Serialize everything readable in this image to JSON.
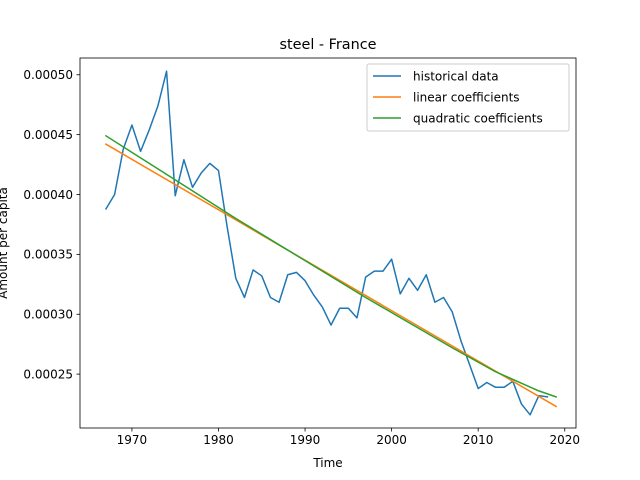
{
  "chart_data": {
    "type": "line",
    "title": "steel - France",
    "xlabel": "Time",
    "ylabel": "Amount per capita",
    "xlim": [
      1964,
      2021.3
    ],
    "ylim": [
      0.000205,
      0.000514
    ],
    "xticks": [
      1970,
      1980,
      1990,
      2000,
      2010,
      2020
    ],
    "xtick_labels": [
      "1970",
      "1980",
      "1990",
      "2000",
      "2010",
      "2020"
    ],
    "yticks": [
      0.00025,
      0.0003,
      0.00035,
      0.0004,
      0.00045,
      0.0005
    ],
    "ytick_labels": [
      "0.00025",
      "0.00030",
      "0.00035",
      "0.00040",
      "0.00045",
      "0.00050"
    ],
    "grid": false,
    "legend_position": "top-right",
    "series": [
      {
        "name": "historical data",
        "color": "#1f77b4",
        "x": [
          1967,
          1968,
          1969,
          1970,
          1971,
          1972,
          1973,
          1974,
          1975,
          1976,
          1977,
          1978,
          1979,
          1980,
          1981,
          1982,
          1983,
          1984,
          1985,
          1986,
          1987,
          1988,
          1989,
          1990,
          1991,
          1992,
          1993,
          1994,
          1995,
          1996,
          1997,
          1998,
          1999,
          2000,
          2001,
          2002,
          2003,
          2004,
          2005,
          2006,
          2007,
          2008,
          2009,
          2010,
          2011,
          2012,
          2013,
          2014,
          2015,
          2016,
          2017,
          2018
        ],
        "y": [
          0.000388,
          0.0004,
          0.000438,
          0.000458,
          0.000436,
          0.000454,
          0.000474,
          0.000503,
          0.000399,
          0.000429,
          0.000406,
          0.000418,
          0.000426,
          0.00042,
          0.000373,
          0.00033,
          0.000314,
          0.000337,
          0.000332,
          0.000314,
          0.00031,
          0.000333,
          0.000335,
          0.000328,
          0.000316,
          0.000306,
          0.000291,
          0.000305,
          0.000305,
          0.000297,
          0.000331,
          0.000336,
          0.000336,
          0.000346,
          0.000317,
          0.00033,
          0.00032,
          0.000333,
          0.00031,
          0.000314,
          0.000302,
          0.000278,
          0.000258,
          0.000238,
          0.000243,
          0.000239,
          0.000239,
          0.000244,
          0.000225,
          0.000216,
          0.000232,
          0.000231
        ]
      },
      {
        "name": "linear coefficients",
        "color": "#ff7f0e",
        "x": [
          1967,
          2019
        ],
        "y": [
          0.000442,
          0.000223
        ]
      },
      {
        "name": "quadratic coefficients",
        "color": "#2ca02c",
        "x": [
          1967,
          1972,
          1977,
          1982,
          1987,
          1992,
          1997,
          2002,
          2007,
          2012,
          2017,
          2019
        ],
        "y": [
          0.000449,
          0.000426,
          0.000403,
          0.00038,
          0.000358,
          0.000336,
          0.000314,
          0.000293,
          0.000272,
          0.000252,
          0.000236,
          0.000231
        ]
      }
    ]
  }
}
